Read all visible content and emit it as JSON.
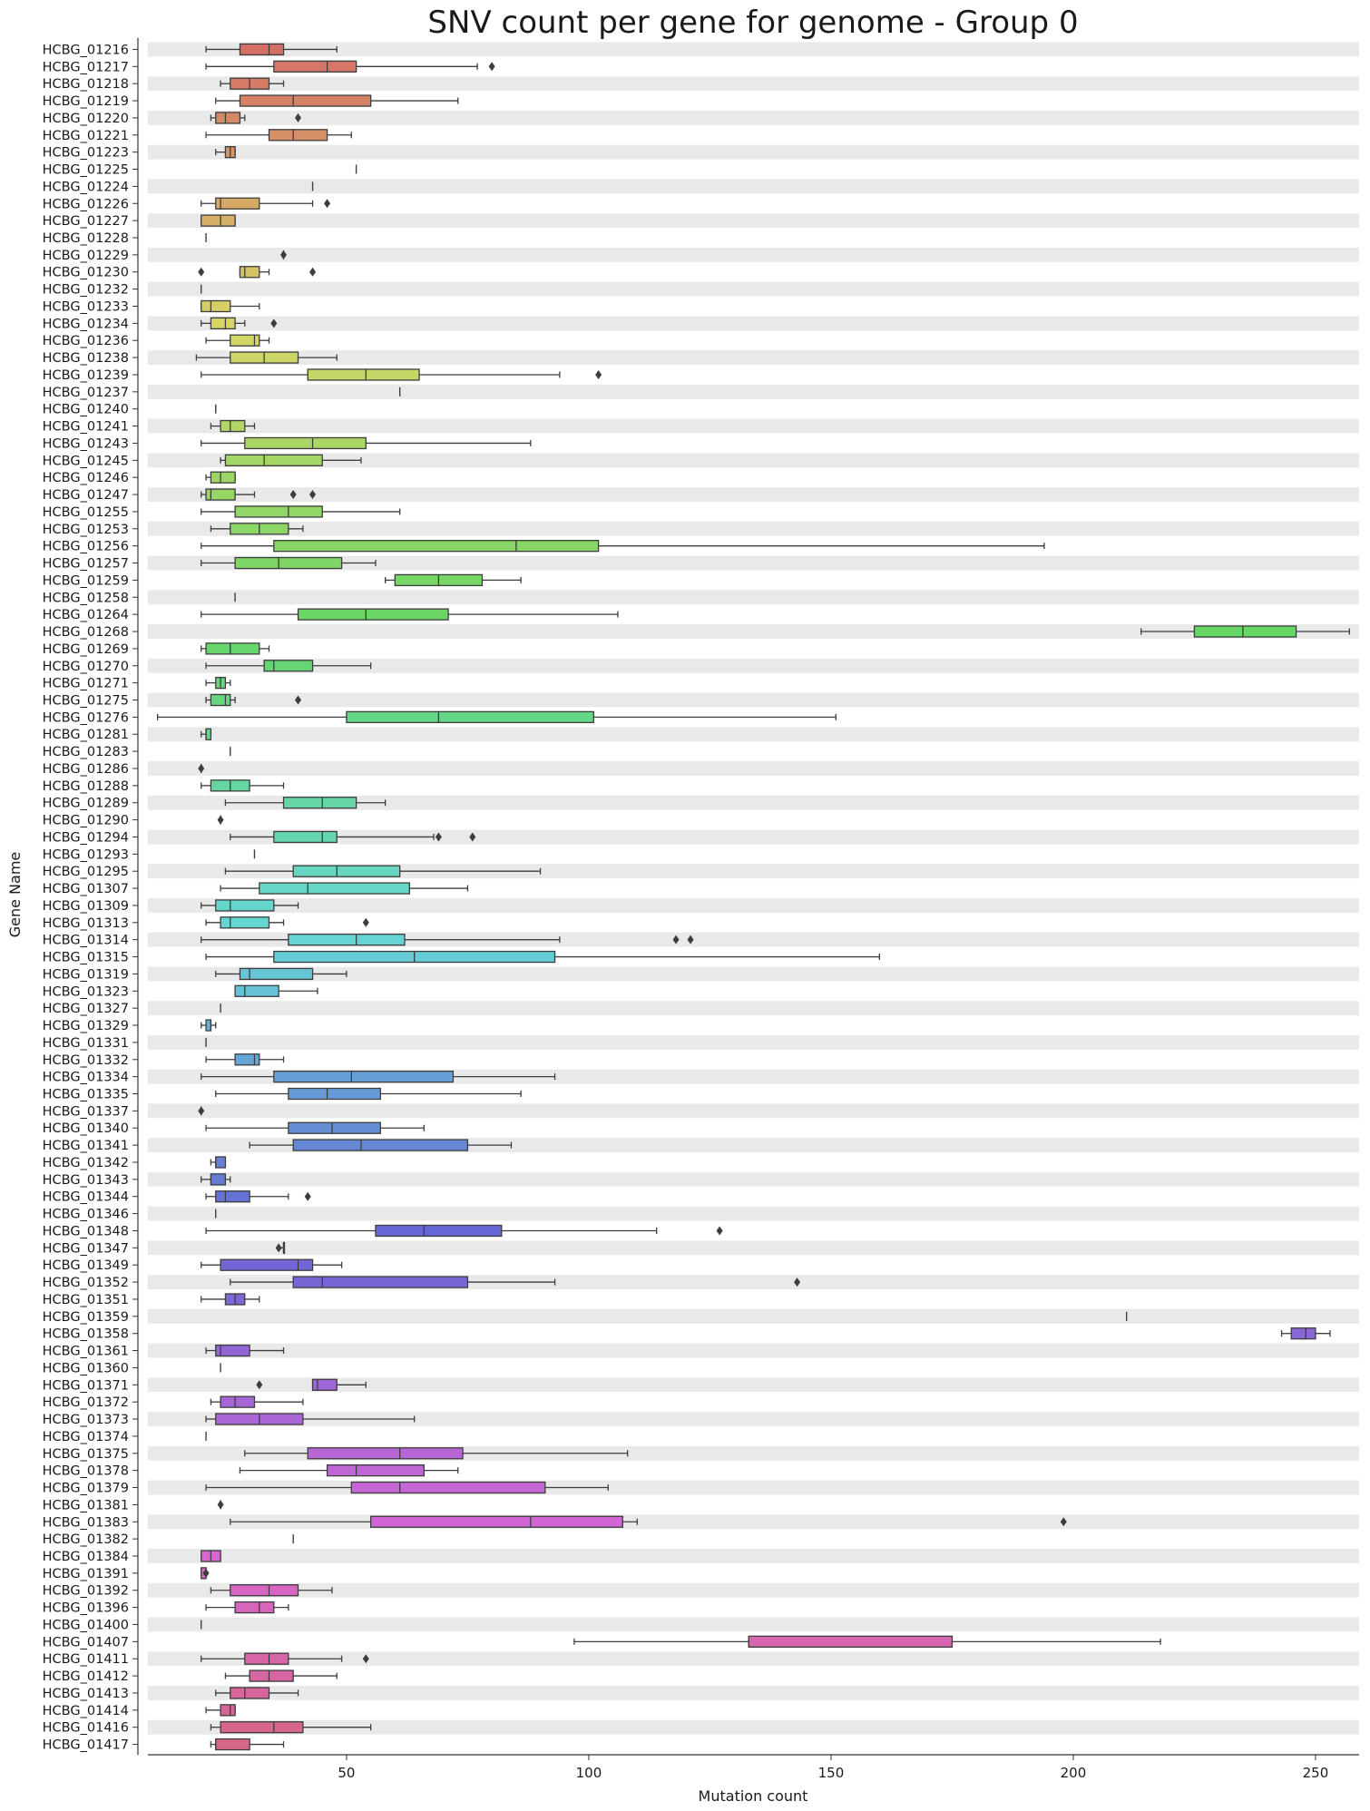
{
  "chart_data": {
    "type": "boxplot",
    "orientation": "horizontal",
    "title": "SNV count per gene for genome - Group 0",
    "xlabel": "Mutation count",
    "ylabel": "Gene Name",
    "xlim": [
      9,
      259
    ],
    "xticks": [
      50,
      100,
      150,
      200,
      250
    ],
    "grid": false,
    "row_banding": true,
    "palette": "husl",
    "categories": [
      "HCBG_01216",
      "HCBG_01217",
      "HCBG_01218",
      "HCBG_01219",
      "HCBG_01220",
      "HCBG_01221",
      "HCBG_01223",
      "HCBG_01225",
      "HCBG_01224",
      "HCBG_01226",
      "HCBG_01227",
      "HCBG_01228",
      "HCBG_01229",
      "HCBG_01230",
      "HCBG_01232",
      "HCBG_01233",
      "HCBG_01234",
      "HCBG_01236",
      "HCBG_01238",
      "HCBG_01239",
      "HCBG_01237",
      "HCBG_01240",
      "HCBG_01241",
      "HCBG_01243",
      "HCBG_01245",
      "HCBG_01246",
      "HCBG_01247",
      "HCBG_01255",
      "HCBG_01253",
      "HCBG_01256",
      "HCBG_01257",
      "HCBG_01259",
      "HCBG_01258",
      "HCBG_01264",
      "HCBG_01268",
      "HCBG_01269",
      "HCBG_01270",
      "HCBG_01271",
      "HCBG_01275",
      "HCBG_01276",
      "HCBG_01281",
      "HCBG_01283",
      "HCBG_01286",
      "HCBG_01288",
      "HCBG_01289",
      "HCBG_01290",
      "HCBG_01294",
      "HCBG_01293",
      "HCBG_01295",
      "HCBG_01307",
      "HCBG_01309",
      "HCBG_01313",
      "HCBG_01314",
      "HCBG_01315",
      "HCBG_01319",
      "HCBG_01323",
      "HCBG_01327",
      "HCBG_01329",
      "HCBG_01331",
      "HCBG_01332",
      "HCBG_01334",
      "HCBG_01335",
      "HCBG_01337",
      "HCBG_01340",
      "HCBG_01341",
      "HCBG_01342",
      "HCBG_01343",
      "HCBG_01344",
      "HCBG_01346",
      "HCBG_01348",
      "HCBG_01347",
      "HCBG_01349",
      "HCBG_01352",
      "HCBG_01351",
      "HCBG_01359",
      "HCBG_01358",
      "HCBG_01361",
      "HCBG_01360",
      "HCBG_01371",
      "HCBG_01372",
      "HCBG_01373",
      "HCBG_01374",
      "HCBG_01375",
      "HCBG_01378",
      "HCBG_01379",
      "HCBG_01381",
      "HCBG_01383",
      "HCBG_01382",
      "HCBG_01384",
      "HCBG_01391",
      "HCBG_01392",
      "HCBG_01396",
      "HCBG_01400",
      "HCBG_01407",
      "HCBG_01411",
      "HCBG_01412",
      "HCBG_01413",
      "HCBG_01414",
      "HCBG_01416",
      "HCBG_01417"
    ],
    "boxes": [
      [
        21,
        28,
        34,
        37,
        48
      ],
      [
        21,
        35,
        46,
        52,
        77
      ],
      [
        24,
        26,
        30,
        34,
        37
      ],
      [
        23,
        28,
        39,
        55,
        73
      ],
      [
        22,
        23,
        25,
        28,
        29
      ],
      [
        21,
        34,
        39,
        46,
        51
      ],
      [
        23,
        25,
        26,
        27,
        27
      ],
      [
        52,
        52,
        52,
        52,
        52
      ],
      [
        43,
        43,
        43,
        43,
        43
      ],
      [
        20,
        23,
        24,
        32,
        43
      ],
      [
        20,
        20,
        24,
        27,
        27
      ],
      [
        21,
        21,
        21,
        21,
        21
      ],
      [
        37,
        37,
        37,
        37,
        37
      ],
      [
        28,
        28,
        29,
        32,
        34
      ],
      [
        20,
        20,
        20,
        20,
        20
      ],
      [
        20,
        20,
        22,
        26,
        32
      ],
      [
        20,
        22,
        25,
        27,
        29
      ],
      [
        21,
        26,
        31,
        32,
        34
      ],
      [
        19,
        26,
        33,
        40,
        48
      ],
      [
        20,
        42,
        54,
        65,
        94
      ],
      [
        61,
        61,
        61,
        61,
        61
      ],
      [
        23,
        23,
        23,
        23,
        23
      ],
      [
        22,
        24,
        26,
        29,
        31
      ],
      [
        20,
        29,
        43,
        54,
        88
      ],
      [
        24,
        25,
        33,
        45,
        53
      ],
      [
        21,
        22,
        24,
        27,
        27
      ],
      [
        20,
        21,
        22,
        27,
        31
      ],
      [
        20,
        27,
        38,
        45,
        61
      ],
      [
        22,
        26,
        32,
        38,
        41
      ],
      [
        20,
        35,
        85,
        102,
        194
      ],
      [
        20,
        27,
        36,
        49,
        56
      ],
      [
        58,
        60,
        69,
        78,
        86
      ],
      [
        27,
        27,
        27,
        27,
        27
      ],
      [
        20,
        40,
        54,
        71,
        106
      ],
      [
        214,
        225,
        235,
        246,
        257
      ],
      [
        20,
        21,
        26,
        32,
        34
      ],
      [
        21,
        33,
        35,
        43,
        55
      ],
      [
        21,
        23,
        24,
        25,
        26
      ],
      [
        21,
        22,
        25,
        26,
        27
      ],
      [
        11,
        50,
        69,
        101,
        151
      ],
      [
        20,
        21,
        21,
        22,
        22
      ],
      [
        26,
        26,
        26,
        26,
        26
      ],
      [
        20,
        20,
        20,
        20,
        20
      ],
      [
        20,
        22,
        26,
        30,
        37
      ],
      [
        25,
        37,
        45,
        52,
        58
      ],
      [
        24,
        24,
        24,
        24,
        24
      ],
      [
        26,
        35,
        45,
        48,
        68
      ],
      [
        31,
        31,
        31,
        31,
        31
      ],
      [
        25,
        39,
        48,
        61,
        90
      ],
      [
        24,
        32,
        42,
        63,
        75
      ],
      [
        20,
        23,
        26,
        35,
        40
      ],
      [
        21,
        24,
        26,
        34,
        37
      ],
      [
        20,
        38,
        52,
        62,
        94
      ],
      [
        21,
        35,
        64,
        93,
        160
      ],
      [
        23,
        28,
        30,
        43,
        50
      ],
      [
        27,
        27,
        29,
        36,
        44
      ],
      [
        24,
        24,
        24,
        24,
        24
      ],
      [
        20,
        21,
        22,
        22,
        23
      ],
      [
        21,
        21,
        21,
        21,
        21
      ],
      [
        21,
        27,
        31,
        32,
        37
      ],
      [
        20,
        35,
        51,
        72,
        93
      ],
      [
        23,
        38,
        46,
        57,
        86
      ],
      [
        20,
        20,
        20,
        20,
        20
      ],
      [
        21,
        38,
        47,
        57,
        66
      ],
      [
        30,
        39,
        53,
        75,
        84
      ],
      [
        22,
        23,
        23,
        25,
        25
      ],
      [
        20,
        22,
        22,
        25,
        26
      ],
      [
        21,
        23,
        25,
        30,
        38
      ],
      [
        23,
        23,
        23,
        23,
        23
      ],
      [
        21,
        56,
        66,
        82,
        114
      ],
      [
        36,
        37,
        37,
        37,
        37
      ],
      [
        20,
        24,
        40,
        43,
        49
      ],
      [
        26,
        39,
        45,
        75,
        93
      ],
      [
        20,
        25,
        27,
        29,
        32
      ],
      [
        211,
        211,
        211,
        211,
        211
      ],
      [
        243,
        245,
        248,
        250,
        253
      ],
      [
        21,
        23,
        24,
        30,
        37
      ],
      [
        24,
        24,
        24,
        24,
        24
      ],
      [
        43,
        43,
        44,
        48,
        54
      ],
      [
        22,
        24,
        27,
        31,
        41
      ],
      [
        21,
        23,
        32,
        41,
        64
      ],
      [
        21,
        21,
        21,
        21,
        21
      ],
      [
        29,
        42,
        61,
        74,
        108
      ],
      [
        28,
        46,
        52,
        66,
        73
      ],
      [
        21,
        51,
        61,
        91,
        104
      ],
      [
        24,
        24,
        24,
        24,
        24
      ],
      [
        26,
        55,
        88,
        107,
        110
      ],
      [
        39,
        39,
        39,
        39,
        39
      ],
      [
        20,
        20,
        22,
        24,
        24
      ],
      [
        20,
        20,
        21,
        21,
        21
      ],
      [
        22,
        26,
        34,
        40,
        47
      ],
      [
        21,
        27,
        32,
        35,
        38
      ],
      [
        20,
        20,
        20,
        20,
        20
      ],
      [
        97,
        133,
        133,
        175,
        218
      ],
      [
        20,
        29,
        34,
        38,
        49
      ],
      [
        25,
        30,
        34,
        39,
        48
      ],
      [
        23,
        26,
        29,
        34,
        40
      ],
      [
        21,
        24,
        26,
        27,
        27
      ],
      [
        22,
        24,
        35,
        41,
        55
      ],
      [
        22,
        23,
        23,
        30,
        37
      ]
    ],
    "outliers": [
      [
        0,
        []
      ],
      [
        1,
        [
          80
        ]
      ],
      [
        2,
        []
      ],
      [
        3,
        []
      ],
      [
        4,
        [
          40
        ]
      ],
      [
        5,
        []
      ],
      [
        6,
        []
      ],
      [
        7,
        []
      ],
      [
        8,
        []
      ],
      [
        9,
        [
          46
        ]
      ],
      [
        10,
        []
      ],
      [
        11,
        []
      ],
      [
        12,
        [
          37
        ]
      ],
      [
        13,
        [
          20,
          43
        ]
      ],
      [
        14,
        []
      ],
      [
        15,
        []
      ],
      [
        16,
        [
          35
        ]
      ],
      [
        17,
        []
      ],
      [
        18,
        []
      ],
      [
        19,
        [
          102
        ]
      ],
      [
        20,
        []
      ],
      [
        21,
        []
      ],
      [
        22,
        []
      ],
      [
        23,
        []
      ],
      [
        24,
        []
      ],
      [
        25,
        []
      ],
      [
        26,
        [
          39,
          43
        ]
      ],
      [
        27,
        []
      ],
      [
        28,
        []
      ],
      [
        29,
        []
      ],
      [
        30,
        []
      ],
      [
        31,
        []
      ],
      [
        32,
        []
      ],
      [
        33,
        []
      ],
      [
        34,
        []
      ],
      [
        35,
        []
      ],
      [
        36,
        []
      ],
      [
        37,
        []
      ],
      [
        38,
        [
          40
        ]
      ],
      [
        39,
        []
      ],
      [
        40,
        []
      ],
      [
        41,
        []
      ],
      [
        42,
        [
          20
        ]
      ],
      [
        43,
        []
      ],
      [
        44,
        []
      ],
      [
        45,
        [
          24
        ]
      ],
      [
        46,
        [
          69,
          76
        ]
      ],
      [
        47,
        []
      ],
      [
        48,
        []
      ],
      [
        49,
        []
      ],
      [
        50,
        []
      ],
      [
        51,
        [
          54
        ]
      ],
      [
        52,
        [
          118,
          121
        ]
      ],
      [
        53,
        []
      ],
      [
        54,
        []
      ],
      [
        55,
        []
      ],
      [
        56,
        []
      ],
      [
        57,
        []
      ],
      [
        58,
        []
      ],
      [
        59,
        []
      ],
      [
        60,
        []
      ],
      [
        61,
        []
      ],
      [
        62,
        [
          20
        ]
      ],
      [
        63,
        []
      ],
      [
        64,
        []
      ],
      [
        65,
        []
      ],
      [
        66,
        []
      ],
      [
        67,
        [
          42
        ]
      ],
      [
        68,
        []
      ],
      [
        69,
        [
          127
        ]
      ],
      [
        70,
        [
          36
        ]
      ],
      [
        71,
        []
      ],
      [
        72,
        [
          143
        ]
      ],
      [
        73,
        []
      ],
      [
        74,
        []
      ],
      [
        75,
        []
      ],
      [
        76,
        []
      ],
      [
        77,
        []
      ],
      [
        78,
        [
          32
        ]
      ],
      [
        79,
        []
      ],
      [
        80,
        []
      ],
      [
        81,
        []
      ],
      [
        82,
        []
      ],
      [
        83,
        []
      ],
      [
        84,
        []
      ],
      [
        85,
        [
          24
        ]
      ],
      [
        86,
        [
          198
        ]
      ],
      [
        87,
        []
      ],
      [
        88,
        []
      ],
      [
        89,
        [
          21
        ]
      ],
      [
        90,
        []
      ],
      [
        91,
        []
      ],
      [
        92,
        []
      ],
      [
        93,
        []
      ],
      [
        94,
        [
          54
        ]
      ],
      [
        95,
        []
      ],
      [
        96,
        []
      ],
      [
        97,
        []
      ],
      [
        98,
        []
      ],
      [
        99,
        []
      ]
    ]
  }
}
